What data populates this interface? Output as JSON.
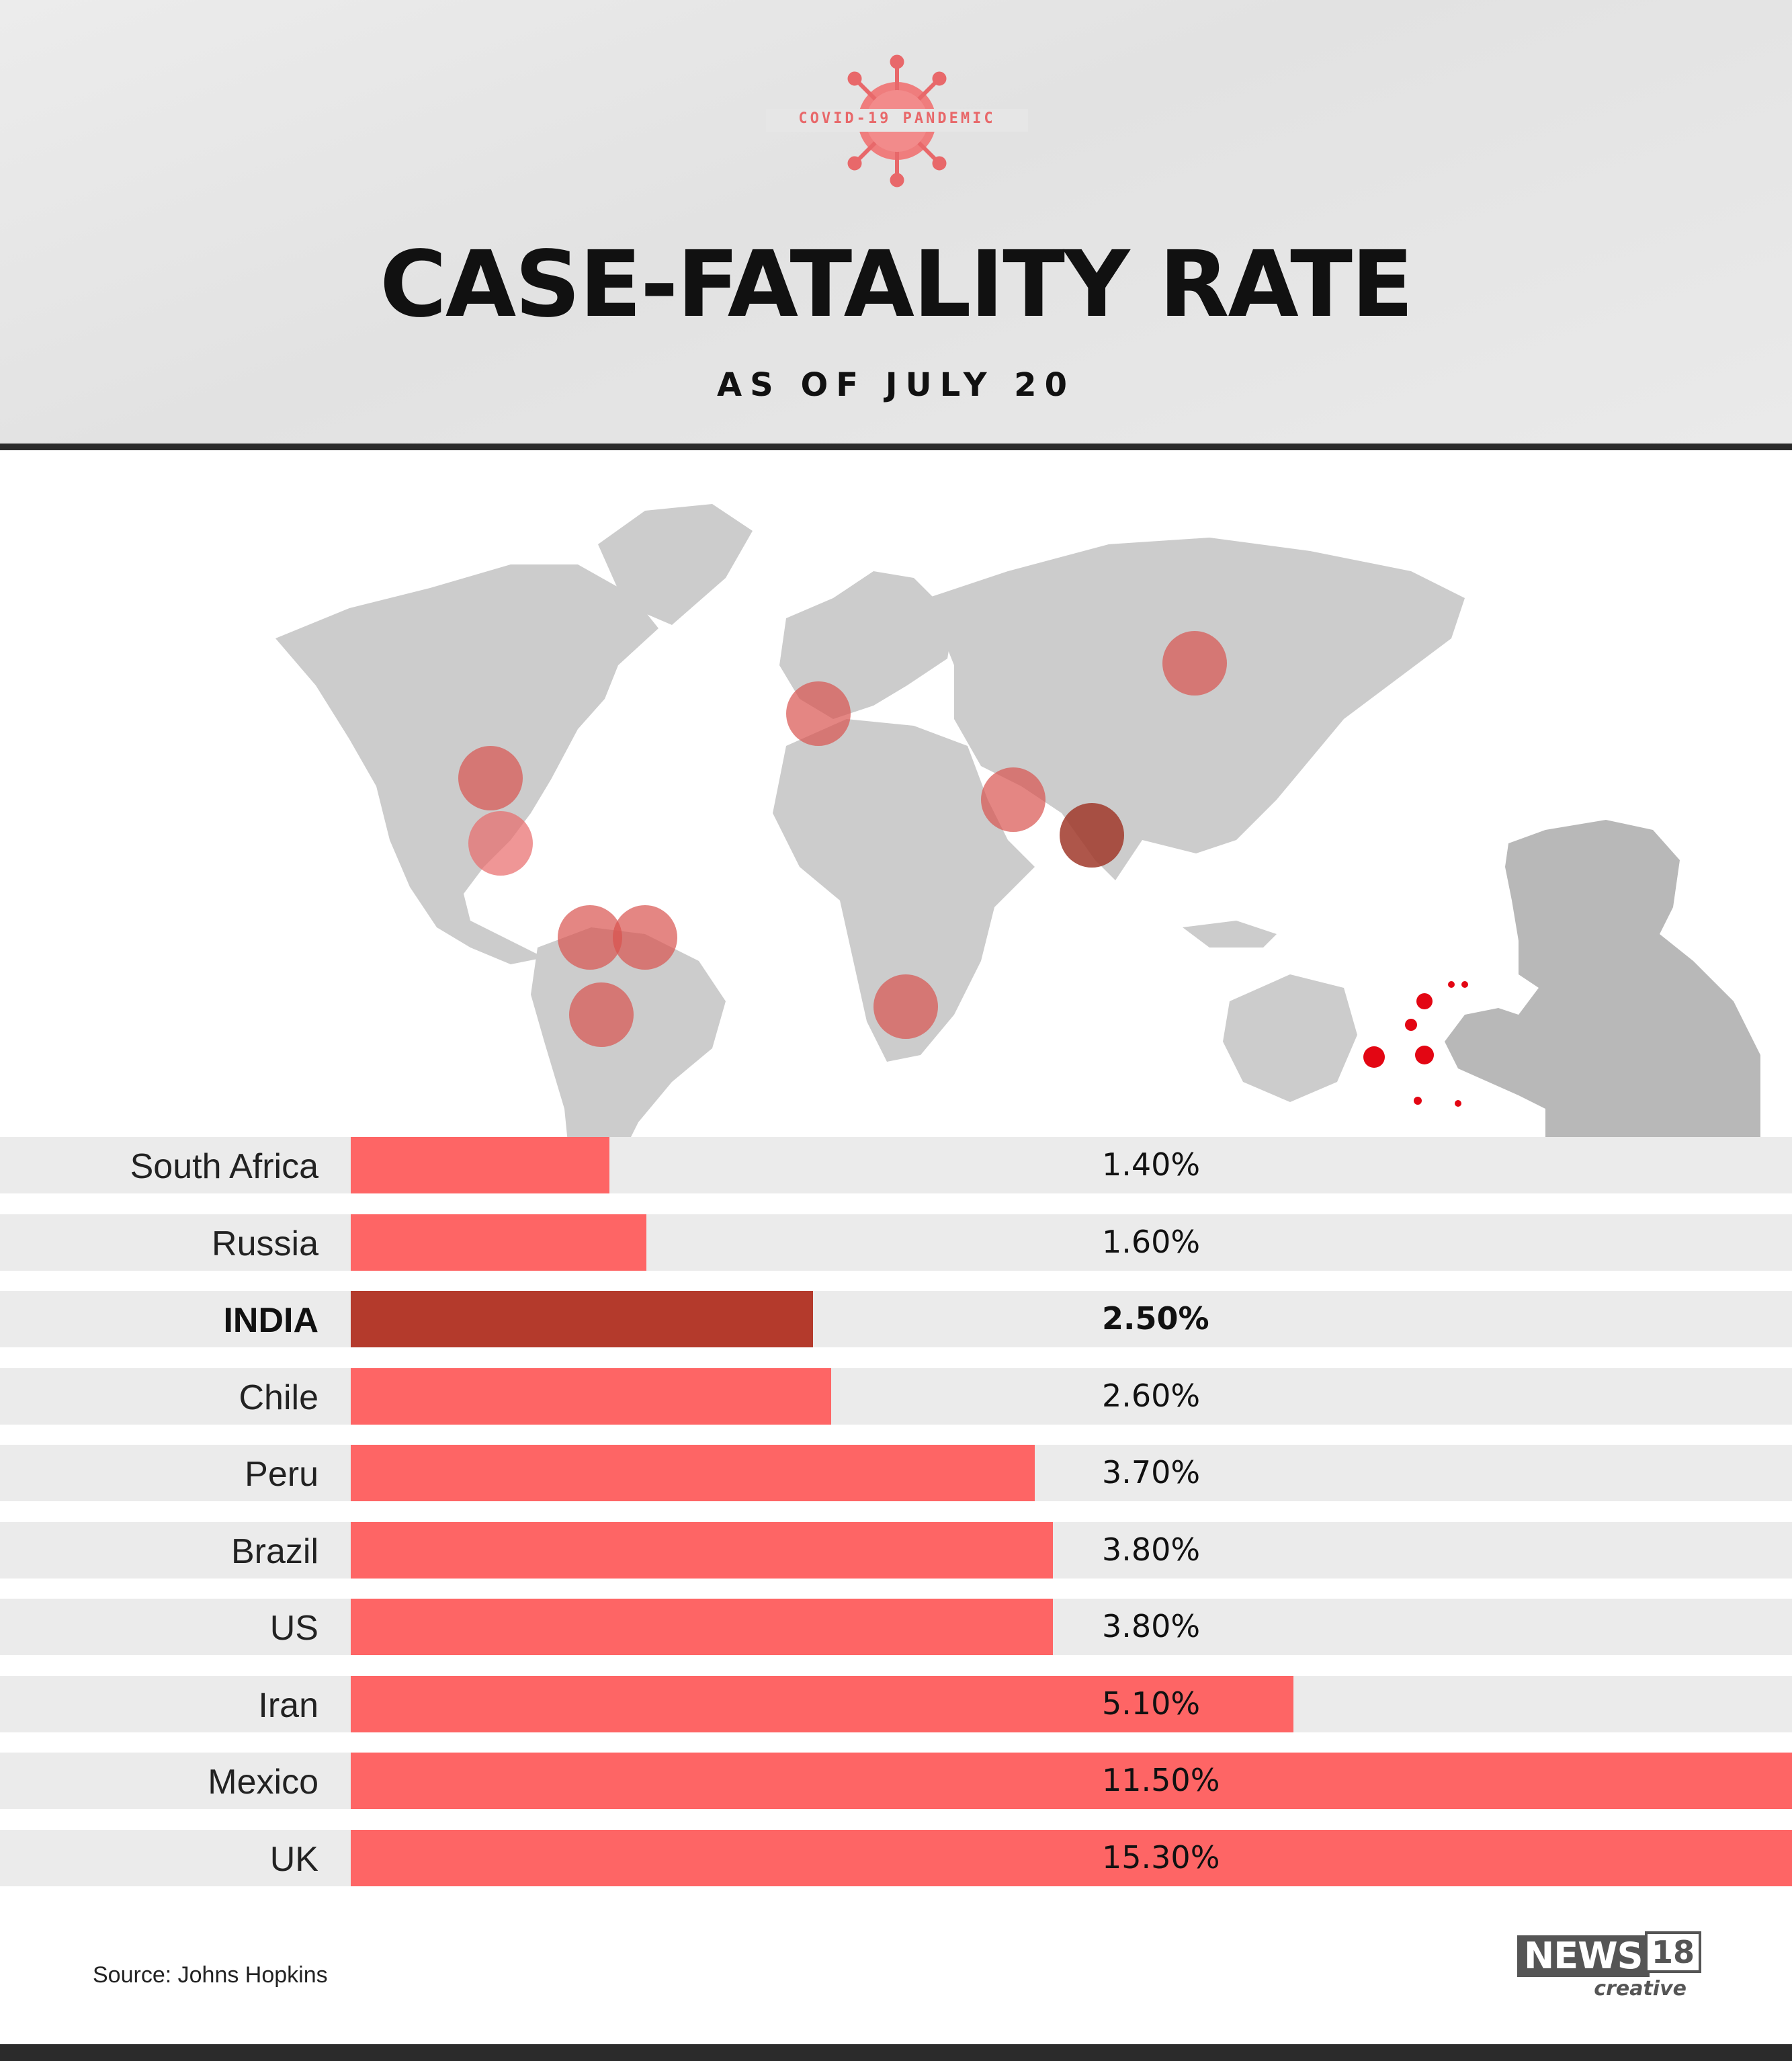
{
  "header": {
    "badge": "COVID-19 PANDEMIC",
    "title": "CASE-FATALITY RATE",
    "subtitle": "AS OF JULY 20"
  },
  "chart_data": {
    "type": "bar",
    "orientation": "horizontal",
    "title": "CASE-FATALITY RATE",
    "subtitle": "AS OF JULY 20",
    "unit": "%",
    "categories": [
      "South Africa",
      "Russia",
      "INDIA",
      "Chile",
      "Peru",
      "Brazil",
      "US",
      "Iran",
      "Mexico",
      "UK"
    ],
    "values": [
      1.4,
      1.6,
      2.5,
      2.6,
      3.7,
      3.8,
      3.8,
      5.1,
      11.5,
      15.3
    ],
    "value_labels": [
      "1.40%",
      "1.60%",
      "2.50%",
      "2.60%",
      "3.70%",
      "3.80%",
      "3.80%",
      "5.10%",
      "11.50%",
      "15.30%"
    ],
    "highlight": "INDIA",
    "colors": {
      "bar": "#fe6565",
      "highlight": "#b43a2c",
      "row_background": "#ebebeb"
    },
    "axis_max_visible": 7.8
  },
  "map": {
    "marked_regions": [
      "US",
      "Mexico",
      "Peru",
      "Brazil",
      "Chile",
      "UK",
      "Iran",
      "India",
      "Russia",
      "South Africa"
    ],
    "colors": {
      "land": "#cccccc",
      "marker": "#d9534f",
      "marker_highlight": "#a0382a",
      "person": "#b8b8b8",
      "droplets": "#e30613"
    }
  },
  "footer": {
    "source": "Source: Johns Hopkins",
    "logo_main": "NEWS",
    "logo_num": "18",
    "logo_sub": "creative"
  }
}
